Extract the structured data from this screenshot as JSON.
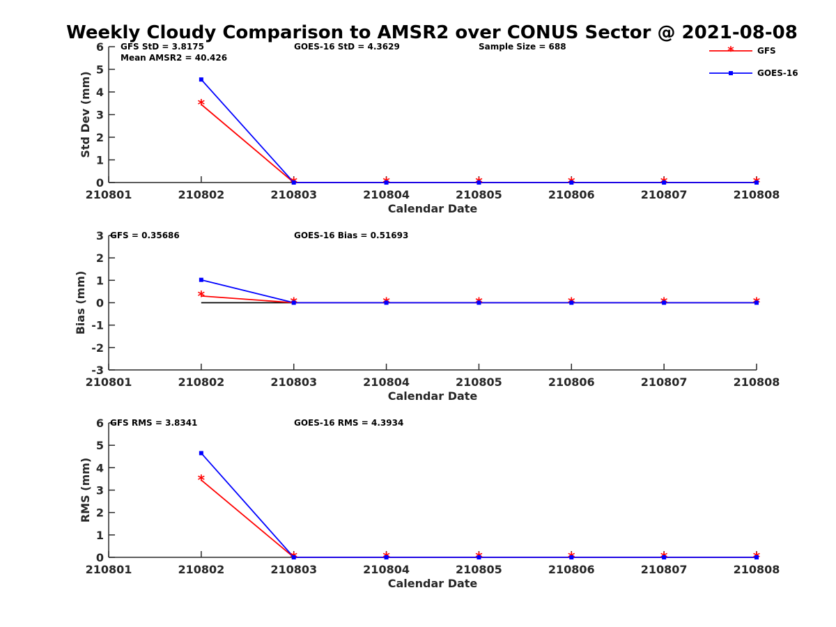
{
  "chart_title": "Weekly Cloudy Comparison to AMSR2 over CONUS Sector @ 2021-08-08",
  "legend": [
    {
      "label": "GFS",
      "color": "#ff0000",
      "marker": "asterisk"
    },
    {
      "label": "GOES-16",
      "color": "#0000ff",
      "marker": "square"
    }
  ],
  "chart_data": [
    {
      "type": "line",
      "xlabel": "Calendar Date",
      "ylabel": "Std Dev (mm)",
      "categories": [
        "210801",
        "210802",
        "210803",
        "210804",
        "210805",
        "210806",
        "210807",
        "210808"
      ],
      "ylim": [
        0,
        6
      ],
      "yticks": [
        "0",
        "1",
        "2",
        "3",
        "4",
        "5",
        "6"
      ],
      "series": [
        {
          "name": "GFS",
          "color": "#ff0000",
          "values": [
            null,
            3.45,
            0,
            0,
            0,
            0,
            0,
            0
          ]
        },
        {
          "name": "GOES-16",
          "color": "#0000ff",
          "values": [
            null,
            4.55,
            0,
            0,
            0,
            0,
            0,
            0
          ]
        }
      ],
      "annotations": [
        "GFS StD = 3.8175",
        "Mean AMSR2 = 40.426",
        "GOES-16 StD = 4.3629",
        "Sample Size = 688"
      ],
      "legend_position": "top-right"
    },
    {
      "type": "line",
      "xlabel": "Calendar Date",
      "ylabel": "Bias (mm)",
      "categories": [
        "210801",
        "210802",
        "210803",
        "210804",
        "210805",
        "210806",
        "210807",
        "210808"
      ],
      "ylim": [
        -3,
        3
      ],
      "yticks": [
        "-3",
        "-2",
        "-1",
        "0",
        "1",
        "2",
        "3"
      ],
      "series": [
        {
          "name": "GFS",
          "color": "#ff0000",
          "values": [
            null,
            0.3,
            0,
            0,
            0,
            0,
            0,
            0
          ]
        },
        {
          "name": "GOES-16",
          "color": "#0000ff",
          "values": [
            null,
            1.02,
            0,
            0,
            0,
            0,
            0,
            0
          ]
        }
      ],
      "reference_line": {
        "y": 0,
        "color": "#000000",
        "from": "210802",
        "to": "210808"
      },
      "annotations": [
        "GFS = 0.35686",
        "GOES-16 Bias  = 0.51693"
      ]
    },
    {
      "type": "line",
      "xlabel": "Calendar Date",
      "ylabel": "RMS (mm)",
      "categories": [
        "210801",
        "210802",
        "210803",
        "210804",
        "210805",
        "210806",
        "210807",
        "210808"
      ],
      "ylim": [
        0,
        6
      ],
      "yticks": [
        "0",
        "1",
        "2",
        "3",
        "4",
        "5",
        "6"
      ],
      "series": [
        {
          "name": "GFS",
          "color": "#ff0000",
          "values": [
            null,
            3.45,
            0,
            0,
            0,
            0,
            0,
            0
          ]
        },
        {
          "name": "GOES-16",
          "color": "#0000ff",
          "values": [
            null,
            4.65,
            0,
            0,
            0,
            0,
            0,
            0
          ]
        }
      ],
      "annotations": [
        "GFS RMS = 3.8341",
        "GOES-16 RMS = 4.3934"
      ]
    }
  ]
}
